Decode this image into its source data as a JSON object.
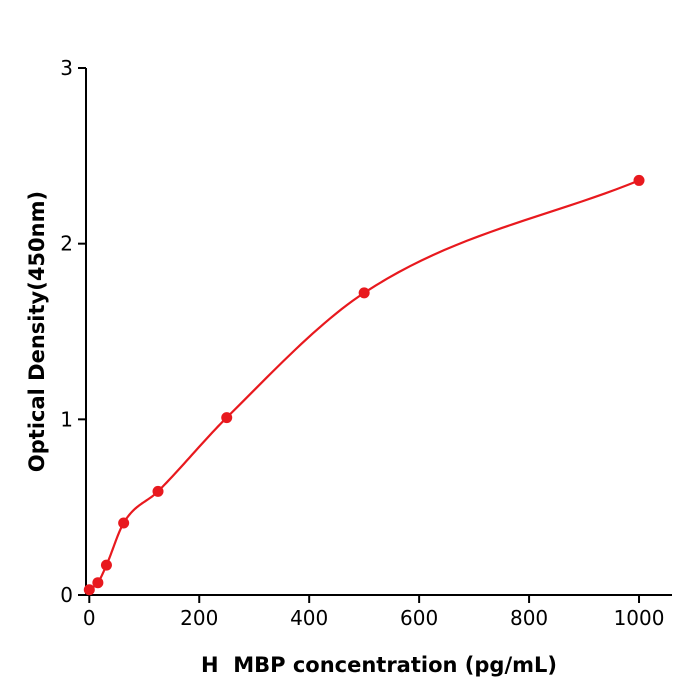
{
  "chart_data": {
    "type": "scatter",
    "title": "",
    "xlabel": "H  MBP concentration (pg/mL)",
    "ylabel": "Optical Density(450nm)",
    "x": [
      0,
      15.6,
      31.2,
      62.5,
      125,
      250,
      500,
      1000
    ],
    "y": [
      0.03,
      0.07,
      0.17,
      0.41,
      0.59,
      1.01,
      1.72,
      2.36
    ],
    "x_ticks": [
      0,
      200,
      400,
      600,
      800,
      1000
    ],
    "y_ticks": [
      0,
      1,
      2,
      3
    ],
    "xlim": [
      -6,
      1060
    ],
    "ylim": [
      0,
      3
    ],
    "grid": false,
    "legend": "none",
    "curve": "smooth saturation fit through data points",
    "point_color": "#e8191e",
    "curve_color": "#e8191e",
    "axis_color": "#000000"
  }
}
